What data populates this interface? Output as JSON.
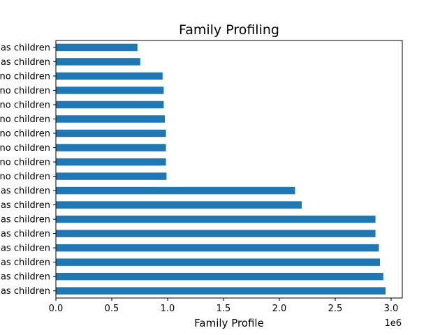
{
  "chart_data": {
    "type": "bar",
    "orientation": "horizontal",
    "title": "Family Profiling",
    "xlabel": "Family Profile",
    "ylabel": "",
    "x_offset_label": "1e6",
    "xlim": [
      0,
      3100000
    ],
    "xticks": [
      {
        "value": 0,
        "label": "0.0"
      },
      {
        "value": 500000,
        "label": "0.5"
      },
      {
        "value": 1000000,
        "label": "1.0"
      },
      {
        "value": 1500000,
        "label": "1.5"
      },
      {
        "value": 2000000,
        "label": "2.0"
      },
      {
        "value": 2500000,
        "label": "2.5"
      },
      {
        "value": 3000000,
        "label": "3.0"
      }
    ],
    "categories": [
      "as children",
      "as children",
      "as children",
      "as children",
      "as children",
      "as children",
      "as children",
      "as children",
      "no children",
      "no children",
      "no children",
      "no children",
      "no children",
      "no children",
      "no children",
      "no children",
      "as children",
      "as children"
    ],
    "values": [
      2950000,
      2930000,
      2900000,
      2890000,
      2860000,
      2860000,
      2200000,
      2140000,
      990000,
      985000,
      985000,
      985000,
      975000,
      965000,
      965000,
      955000,
      755000,
      730000
    ],
    "bar_color": "#1f77b4",
    "grid": false,
    "legend": "none"
  }
}
